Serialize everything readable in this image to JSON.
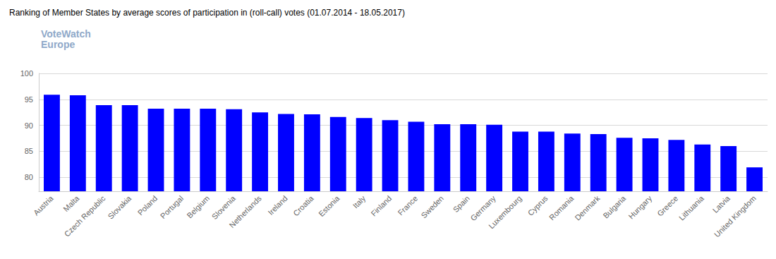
{
  "chart_data": {
    "type": "bar",
    "title": "Ranking of Member States by average scores of participation in (roll-call) votes (01.07.2014 - 18.05.2017)",
    "annotations": [
      "VoteWatch",
      "Europe"
    ],
    "categories": [
      "Austria",
      "Malta",
      "Czech Republic",
      "Slovakia",
      "Poland",
      "Portugal",
      "Belgium",
      "Slovenia",
      "Netherlands",
      "Ireland",
      "Croatia",
      "Estonia",
      "Italy",
      "Finland",
      "France",
      "Sweden",
      "Spain",
      "Germany",
      "Luxembourg",
      "Cyprus",
      "Romania",
      "Denmark",
      "Bulgaria",
      "Hungary",
      "Greece",
      "Lithuania",
      "Latvia",
      "United Kingdom"
    ],
    "values": [
      95.9,
      95.8,
      93.9,
      93.9,
      93.2,
      93.2,
      93.2,
      93.1,
      92.5,
      92.2,
      92.1,
      91.6,
      91.4,
      91.0,
      90.7,
      90.2,
      90.2,
      90.1,
      88.8,
      88.8,
      88.4,
      88.3,
      87.6,
      87.5,
      87.2,
      86.3,
      86.0,
      81.9
    ],
    "color": "#0000ff",
    "ylim": [
      77.3,
      100
    ],
    "yticks": [
      80,
      85,
      90,
      95,
      100
    ],
    "grid": true
  }
}
